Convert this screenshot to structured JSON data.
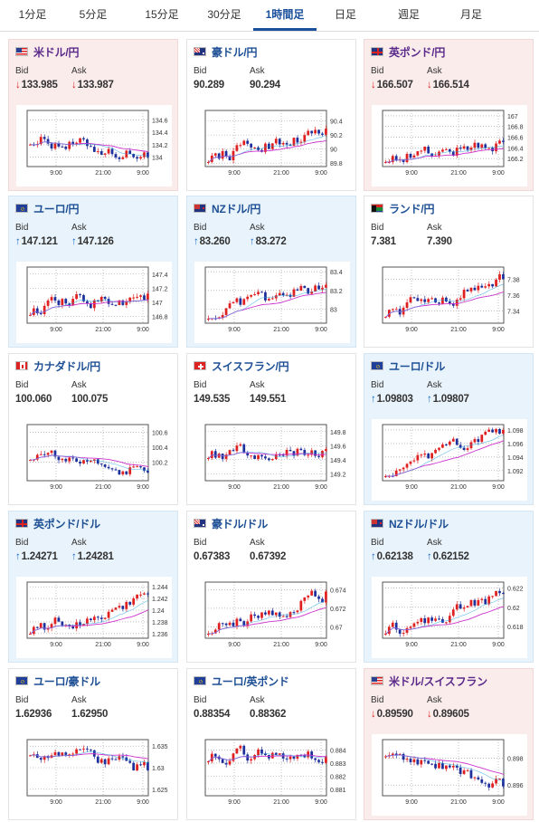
{
  "tabs": [
    {
      "label": "1分足",
      "active": false
    },
    {
      "label": "5分足",
      "active": false
    },
    {
      "label": "15分足",
      "active": false
    },
    {
      "label": "30分足",
      "active": false
    },
    {
      "label": "1時間足",
      "active": true
    },
    {
      "label": "日足",
      "active": false
    },
    {
      "label": "週足",
      "active": false
    },
    {
      "label": "月足",
      "active": false
    }
  ],
  "labels": {
    "bid": "Bid",
    "ask": "Ask"
  },
  "colors": {
    "up_candle": "#e02020",
    "down_candle": "#1d2f9a",
    "ma_line": "#cc33cc",
    "ma_line2": "#22a0e0",
    "down_card_bg": "#fbecec",
    "up_card_bg": "#e9f3fb",
    "up_arrow": "#1a6bc4",
    "down_arrow": "#dd2222"
  },
  "cards": [
    {
      "name": "米ドル/円",
      "flag": "us",
      "dir": "down",
      "bid": "133.985",
      "ask": "133.987",
      "chart": {
        "type": "candlestick",
        "x_ticks": [
          "9:00",
          "21:00",
          "9:00"
        ],
        "y_ticks": [
          "134.6",
          "134.4",
          "134.2",
          "134"
        ],
        "ylim": [
          133.85,
          134.75
        ],
        "open": 134.3,
        "close": 134.0,
        "trend": "down"
      }
    },
    {
      "name": "豪ドル/円",
      "flag": "au",
      "dir": "flat",
      "bid": "90.289",
      "ask": "90.294",
      "chart": {
        "type": "candlestick",
        "x_ticks": [
          "9:00",
          "21:00",
          "9:00"
        ],
        "y_ticks": [
          "90.4",
          "90.2",
          "90",
          "89.8"
        ],
        "ylim": [
          89.75,
          90.55
        ],
        "open": 89.9,
        "close": 90.29,
        "trend": "up"
      }
    },
    {
      "name": "英ポンド/円",
      "flag": "gb",
      "dir": "down",
      "bid": "166.507",
      "ask": "166.514",
      "chart": {
        "type": "candlestick",
        "x_ticks": [
          "9:00",
          "21:00",
          "9:00"
        ],
        "y_ticks": [
          "167",
          "166.8",
          "166.6",
          "166.4",
          "166.2"
        ],
        "ylim": [
          166.05,
          167.1
        ],
        "open": 166.2,
        "close": 166.51,
        "trend": "up"
      }
    },
    {
      "name": "ユーロ/円",
      "flag": "eu",
      "dir": "up",
      "bid": "147.121",
      "ask": "147.126",
      "chart": {
        "type": "candlestick",
        "x_ticks": [
          "9:00",
          "21:00",
          "9:00"
        ],
        "y_ticks": [
          "147.4",
          "147.2",
          "147",
          "146.8"
        ],
        "ylim": [
          146.7,
          147.5
        ],
        "open": 146.9,
        "close": 147.12,
        "trend": "up"
      }
    },
    {
      "name": "NZドル/円",
      "flag": "nz",
      "dir": "up",
      "bid": "83.260",
      "ask": "83.272",
      "chart": {
        "type": "candlestick",
        "x_ticks": [
          "9:00",
          "21:00",
          "9:00"
        ],
        "y_ticks": [
          "83.4",
          "83.2",
          "83"
        ],
        "ylim": [
          82.85,
          83.45
        ],
        "open": 82.95,
        "close": 83.26,
        "trend": "up"
      }
    },
    {
      "name": "ランド/円",
      "flag": "za",
      "dir": "flat",
      "bid": "7.381",
      "ask": "7.390",
      "chart": {
        "type": "candlestick",
        "x_ticks": [
          "9:00",
          "21:00",
          "9:00"
        ],
        "y_ticks": [
          "7.38",
          "7.36",
          "7.34"
        ],
        "ylim": [
          7.325,
          7.395
        ],
        "open": 7.34,
        "close": 7.38,
        "trend": "up"
      }
    },
    {
      "name": "カナダドル/円",
      "flag": "ca",
      "dir": "flat",
      "bid": "100.060",
      "ask": "100.075",
      "chart": {
        "type": "candlestick",
        "x_ticks": [
          "9:00",
          "21:00",
          "9:00"
        ],
        "y_ticks": [
          "100.6",
          "100.4",
          "100.2"
        ],
        "ylim": [
          99.95,
          100.7
        ],
        "open": 100.3,
        "close": 100.06,
        "trend": "down"
      }
    },
    {
      "name": "スイスフラン/円",
      "flag": "ch",
      "dir": "flat",
      "bid": "149.535",
      "ask": "149.551",
      "chart": {
        "type": "candlestick",
        "x_ticks": [
          "9:00",
          "21:00",
          "9:00"
        ],
        "y_ticks": [
          "149.8",
          "149.6",
          "149.4",
          "149.2"
        ],
        "ylim": [
          149.1,
          149.9
        ],
        "open": 149.5,
        "close": 149.55,
        "trend": "flat"
      }
    },
    {
      "name": "ユーロ/ドル",
      "flag": "eu",
      "dir": "up",
      "bid": "1.09803",
      "ask": "1.09807",
      "chart": {
        "type": "candlestick",
        "x_ticks": [
          "9:00",
          "21:00",
          "9:00"
        ],
        "y_ticks": [
          "1.098",
          "1.096",
          "1.094",
          "1.092"
        ],
        "ylim": [
          1.0905,
          1.0988
        ],
        "open": 1.0915,
        "close": 1.098,
        "trend": "up"
      }
    },
    {
      "name": "英ポンド/ドル",
      "flag": "gb",
      "dir": "up",
      "bid": "1.24271",
      "ask": "1.24281",
      "chart": {
        "type": "candlestick",
        "x_ticks": [
          "9:00",
          "21:00",
          "9:00"
        ],
        "y_ticks": [
          "1.244",
          "1.242",
          "1.24",
          "1.238",
          "1.236"
        ],
        "ylim": [
          1.2352,
          1.2448
        ],
        "open": 1.2365,
        "close": 1.2427,
        "trend": "up"
      }
    },
    {
      "name": "豪ドル/ドル",
      "flag": "au",
      "dir": "flat",
      "bid": "0.67383",
      "ask": "0.67392",
      "chart": {
        "type": "candlestick",
        "x_ticks": [
          "9:00",
          "21:00",
          "9:00"
        ],
        "y_ticks": [
          "0.674",
          "0.672",
          "0.67"
        ],
        "ylim": [
          0.6688,
          0.6748
        ],
        "open": 0.6695,
        "close": 0.6738,
        "trend": "up"
      }
    },
    {
      "name": "NZドル/ドル",
      "flag": "nz",
      "dir": "up",
      "bid": "0.62138",
      "ask": "0.62152",
      "chart": {
        "type": "candlestick",
        "x_ticks": [
          "9:00",
          "21:00",
          "9:00"
        ],
        "y_ticks": [
          "0.622",
          "0.62",
          "0.618"
        ],
        "ylim": [
          0.6168,
          0.6226
        ],
        "open": 0.6175,
        "close": 0.6214,
        "trend": "up"
      }
    },
    {
      "name": "ユーロ/豪ドル",
      "flag": "eu",
      "dir": "flat",
      "bid": "1.62936",
      "ask": "1.62950",
      "chart": {
        "type": "candlestick",
        "x_ticks": [
          "9:00",
          "21:00",
          "9:00"
        ],
        "y_ticks": [
          "1.635",
          "1.63",
          "1.625"
        ],
        "ylim": [
          1.6235,
          1.6365
        ],
        "open": 1.634,
        "close": 1.6294,
        "trend": "down"
      }
    },
    {
      "name": "ユーロ/英ポンド",
      "flag": "eu",
      "dir": "flat",
      "bid": "0.88354",
      "ask": "0.88362",
      "chart": {
        "type": "candlestick",
        "x_ticks": [
          "9:00",
          "21:00",
          "9:00"
        ],
        "y_ticks": [
          "0.884",
          "0.883",
          "0.882",
          "0.881"
        ],
        "ylim": [
          0.8805,
          0.8848
        ],
        "open": 0.8835,
        "close": 0.8835,
        "trend": "flat"
      }
    },
    {
      "name": "米ドル/スイスフラン",
      "flag": "us",
      "dir": "down",
      "bid": "0.89590",
      "ask": "0.89605",
      "chart": {
        "type": "candlestick",
        "x_ticks": [
          "9:00",
          "21:00",
          "9:00"
        ],
        "y_ticks": [
          "0.898",
          "0.896"
        ],
        "ylim": [
          0.8952,
          0.8994
        ],
        "open": 0.8985,
        "close": 0.8959,
        "trend": "down"
      }
    }
  ]
}
